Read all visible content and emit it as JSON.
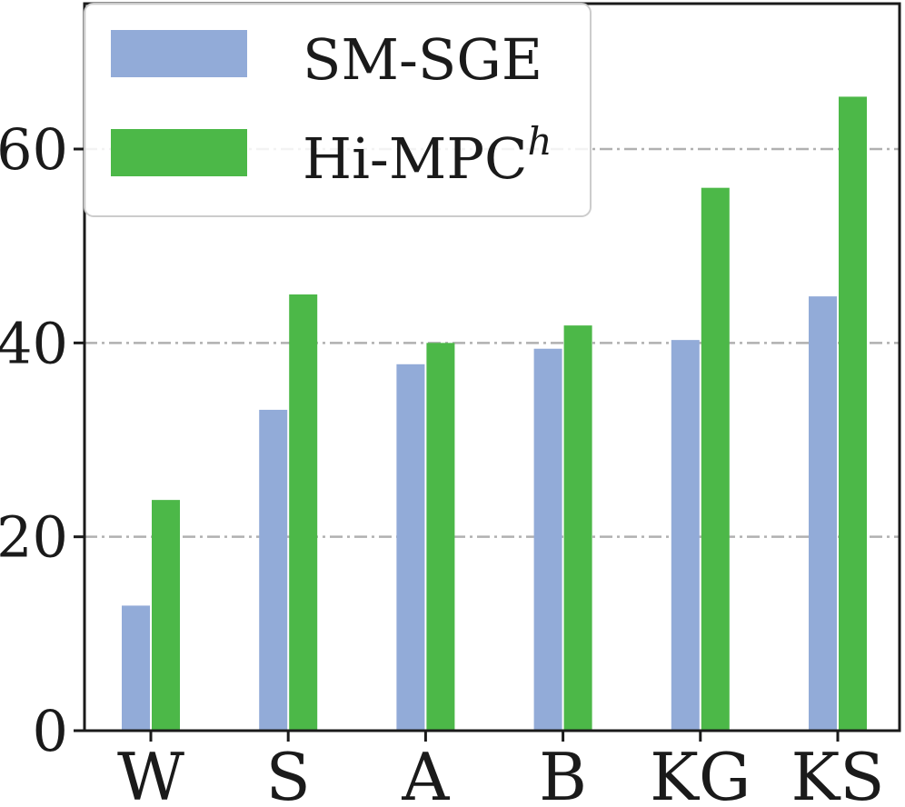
{
  "chart_data": {
    "type": "bar",
    "title": "",
    "xlabel": "",
    "ylabel": "",
    "categories": [
      "W",
      "S",
      "A",
      "B",
      "KG",
      "KS"
    ],
    "series": [
      {
        "name": "SM-SGE",
        "name_suffix": "",
        "color": "#92abd8",
        "values": [
          12.9,
          33.1,
          37.8,
          39.4,
          40.3,
          44.8
        ]
      },
      {
        "name": "Hi-MPC",
        "name_suffix": "h",
        "color": "#4cb848",
        "values": [
          23.8,
          45.0,
          40.0,
          41.8,
          56.0,
          65.4
        ]
      }
    ],
    "ylim": [
      0,
      75
    ],
    "yticks": [
      0,
      20,
      40,
      60
    ],
    "grid": "horizontal dash-dot",
    "legend_position": "top-left"
  }
}
